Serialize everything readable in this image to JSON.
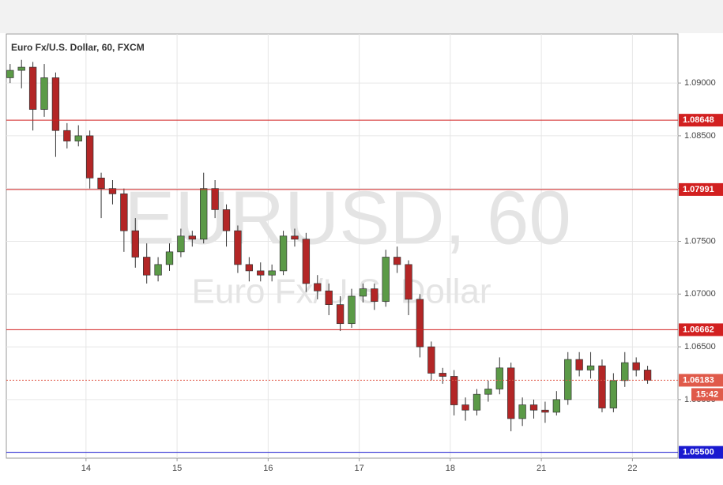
{
  "chart_data": {
    "type": "candlestick",
    "title": "Euro Fx/U.S. Dollar, 60, FXCM",
    "watermark": "EURUSD, 60",
    "watermark_subtitle": "Euro Fx/U.S. Dollar",
    "up_color": "#5b9a47",
    "down_color": "#b32626",
    "x": [
      -20,
      -17,
      -14,
      -11,
      -8,
      -5,
      -2,
      1,
      4,
      7,
      10,
      13,
      16,
      19,
      22,
      25,
      28,
      31,
      34,
      37,
      40,
      43,
      46,
      49,
      52,
      55,
      58,
      61,
      64,
      67,
      70,
      73,
      76,
      79,
      82,
      85,
      88,
      91,
      94,
      97,
      100,
      103,
      106,
      109,
      112,
      115,
      118,
      121,
      124,
      127,
      130,
      133,
      136,
      139,
      142,
      145,
      148
    ],
    "open": [
      1.0905,
      1.0912,
      1.0915,
      1.0875,
      1.0905,
      1.0855,
      1.0845,
      1.085,
      1.081,
      1.08,
      1.0795,
      1.076,
      1.0735,
      1.0718,
      1.0728,
      1.074,
      1.0755,
      1.0752,
      1.08,
      1.078,
      1.076,
      1.0728,
      1.0722,
      1.0718,
      1.0722,
      1.0755,
      1.0752,
      1.071,
      1.0703,
      1.069,
      1.0672,
      1.0698,
      1.0705,
      1.0693,
      1.0735,
      1.0728,
      1.0695,
      1.065,
      1.0625,
      1.0622,
      1.0595,
      1.059,
      1.0605,
      1.061,
      1.063,
      1.0582,
      1.0595,
      1.059,
      1.0588,
      1.06,
      1.0638,
      1.0628,
      1.0632,
      1.0592,
      1.0618,
      1.0635,
      1.0628
    ],
    "high": [
      1.0918,
      1.0922,
      1.092,
      1.0918,
      1.091,
      1.0862,
      1.086,
      1.0855,
      1.0815,
      1.0808,
      1.08,
      1.0772,
      1.0748,
      1.0735,
      1.0748,
      1.0762,
      1.076,
      1.0815,
      1.0808,
      1.0785,
      1.0765,
      1.0735,
      1.073,
      1.0728,
      1.076,
      1.0762,
      1.0758,
      1.0718,
      1.071,
      1.0698,
      1.0705,
      1.071,
      1.071,
      1.0742,
      1.0745,
      1.0732,
      1.07,
      1.0655,
      1.063,
      1.0628,
      1.0602,
      1.061,
      1.0618,
      1.064,
      1.0635,
      1.0602,
      1.06,
      1.0598,
      1.0608,
      1.0645,
      1.0645,
      1.0645,
      1.0638,
      1.0625,
      1.0645,
      1.064,
      1.0632
    ],
    "low": [
      1.09,
      1.0895,
      1.0855,
      1.0868,
      1.083,
      1.0838,
      1.084,
      1.08,
      1.0772,
      1.0785,
      1.074,
      1.0725,
      1.071,
      1.0712,
      1.0722,
      1.0735,
      1.0745,
      1.0748,
      1.0772,
      1.0745,
      1.072,
      1.0712,
      1.0712,
      1.0712,
      1.0718,
      1.0745,
      1.0702,
      1.0695,
      1.068,
      1.0665,
      1.0668,
      1.0692,
      1.0685,
      1.0688,
      1.072,
      1.068,
      1.064,
      1.0618,
      1.0615,
      1.0585,
      1.058,
      1.0585,
      1.0598,
      1.0605,
      1.057,
      1.0575,
      1.0582,
      1.0578,
      1.0585,
      1.0595,
      1.0622,
      1.062,
      1.0588,
      1.0588,
      1.0612,
      1.0622,
      1.0615
    ],
    "close": [
      1.0912,
      1.0915,
      1.0875,
      1.0905,
      1.0855,
      1.0845,
      1.085,
      1.081,
      1.08,
      1.0795,
      1.076,
      1.0735,
      1.0718,
      1.0728,
      1.074,
      1.0755,
      1.0752,
      1.08,
      1.078,
      1.076,
      1.0728,
      1.0722,
      1.0718,
      1.0722,
      1.0755,
      1.0752,
      1.071,
      1.0703,
      1.069,
      1.0672,
      1.0698,
      1.0705,
      1.0693,
      1.0735,
      1.0728,
      1.0695,
      1.065,
      1.0625,
      1.0622,
      1.0595,
      1.059,
      1.0605,
      1.061,
      1.063,
      1.0582,
      1.0595,
      1.059,
      1.0588,
      1.06,
      1.0638,
      1.0628,
      1.0632,
      1.0592,
      1.0618,
      1.0635,
      1.0628,
      1.06183
    ],
    "xlim": [
      -21,
      156
    ],
    "xticks": [
      {
        "value": 0,
        "label": "14"
      },
      {
        "value": 24,
        "label": "15"
      },
      {
        "value": 48,
        "label": "16"
      },
      {
        "value": 72,
        "label": "17"
      },
      {
        "value": 96,
        "label": "18"
      },
      {
        "value": 120,
        "label": "21"
      },
      {
        "value": 144,
        "label": "22"
      }
    ],
    "ylim": [
      1.05445,
      1.09465
    ],
    "yticks": [
      {
        "value": 1.06,
        "label": "1.06000"
      },
      {
        "value": 1.065,
        "label": "1.06500"
      },
      {
        "value": 1.07,
        "label": "1.07000"
      },
      {
        "value": 1.075,
        "label": "1.07500"
      },
      {
        "value": 1.08,
        "label": "1.08000"
      },
      {
        "value": 1.085,
        "label": "1.08500"
      },
      {
        "value": 1.09,
        "label": "1.09000"
      }
    ],
    "grid": true,
    "levels": [
      {
        "value": 1.08648,
        "label": "1.08648",
        "color": "#d22020"
      },
      {
        "value": 1.07991,
        "label": "1.07991",
        "color": "#d22020"
      },
      {
        "value": 1.06662,
        "label": "1.06662",
        "color": "#d22020"
      },
      {
        "value": 1.055,
        "label": "1.05500",
        "color": "#1a1ad0"
      }
    ],
    "last_price": 1.06183,
    "last_price_color": "#e05a4a",
    "countdown": "15:42"
  }
}
